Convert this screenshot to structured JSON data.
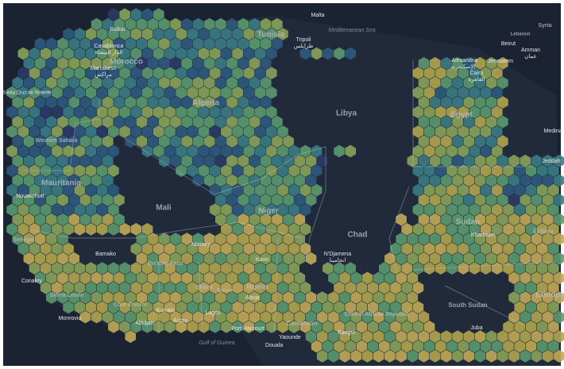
{
  "countries": [
    "Morocco",
    "Algeria",
    "Tunisia",
    "Libya",
    "Egypt",
    "Western Sahara",
    "Mauritania",
    "Mali",
    "Niger",
    "Chad",
    "Sudan",
    "Eritrea",
    "Senegal",
    "Burkina Faso",
    "Nigeria",
    "Ghana",
    "Côte d'Ivoire",
    "Sierra Leone",
    "Benin",
    "Cameroon",
    "Central African Republic",
    "South Sudan",
    "Ethiopia",
    "Syria",
    "Lebanon"
  ],
  "cities": [
    "Rabat",
    "Casablanca",
    "الدار البيضاء",
    "Marrakesh",
    "مراكش",
    "Santa Cruz de Tenerife",
    "Tripoli",
    "طرابلس",
    "Malta",
    "Alexandria",
    "الإسكندرية",
    "Cairo",
    "القاهرة",
    "Beirut",
    "Jerusalem",
    "Amman",
    "عمان",
    "Medina",
    "Jeddah",
    "Nouakchott",
    "Bamako",
    "Niamey",
    "Kano",
    "N'Djamena",
    "انجامينا",
    "Khartoum",
    "Conakry",
    "Monrovia",
    "Kumasi",
    "Abidjan",
    "Accra",
    "Lagos",
    "Abuja",
    "Port Harcourt",
    "Yaounde",
    "Douala",
    "Bangui",
    "Juba"
  ],
  "water": [
    "Mediterranean Sea",
    "Gulf of Guinea"
  ]
}
